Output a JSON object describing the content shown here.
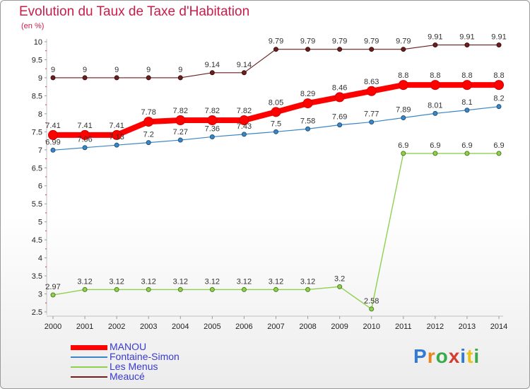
{
  "title": "Evolution du Taux de Taxe d'Habitation",
  "subtitle": "(en %)",
  "brand": {
    "letters": [
      "P",
      "r",
      "o",
      "x",
      "i",
      "t",
      "i"
    ],
    "colors": [
      "#2f7bd6",
      "#e8841b",
      "#3aa94a",
      "#d63b2f",
      "#2f7bd6",
      "#e8c21b",
      "#3aa94a"
    ]
  },
  "chart_data": {
    "type": "line",
    "x": [
      "2000",
      "2001",
      "2002",
      "2003",
      "2004",
      "2005",
      "2006",
      "2007",
      "2008",
      "2009",
      "2010",
      "2011",
      "2012",
      "2013",
      "2014"
    ],
    "ylim": [
      2.5,
      10
    ],
    "yticks": [
      "2.5",
      "3",
      "3.5",
      "4",
      "4.5",
      "5",
      "5.5",
      "6",
      "6.5",
      "7",
      "7.5",
      "8",
      "8.5",
      "9",
      "9.5",
      "10"
    ],
    "grid": false,
    "legend_position": "bottom-left",
    "series": [
      {
        "name": "MANOU",
        "color": "#ff0000",
        "values": [
          7.41,
          7.41,
          7.41,
          7.78,
          7.82,
          7.82,
          7.82,
          8.05,
          8.29,
          8.46,
          8.63,
          8.8,
          8.8,
          8.8,
          8.8
        ],
        "labels": [
          "7.41",
          "7.41",
          "7.41",
          "7.78",
          "7.82",
          "7.82",
          "7.82",
          "8.05",
          "8.29",
          "8.46",
          "8.63",
          "8.8",
          "8.8",
          "8.8",
          "8.8"
        ]
      },
      {
        "name": "Fontaine-Simon",
        "color": "#3b86c6",
        "values": [
          6.99,
          7.06,
          7.13,
          7.2,
          7.27,
          7.36,
          7.43,
          7.5,
          7.58,
          7.69,
          7.77,
          7.89,
          8.01,
          8.1,
          8.2
        ],
        "labels": [
          "6.99",
          "7.06",
          "7.13",
          "7.2",
          "7.27",
          "7.36",
          "7.43",
          "7.5",
          "7.58",
          "7.69",
          "7.77",
          "7.89",
          "8.01",
          "8.1",
          "8.2"
        ]
      },
      {
        "name": "Les Menus",
        "color": "#8fd14f",
        "values": [
          2.97,
          3.12,
          3.12,
          3.12,
          3.12,
          3.12,
          3.12,
          3.12,
          3.12,
          3.2,
          2.58,
          6.9,
          6.9,
          6.9,
          6.9
        ],
        "labels": [
          "2.97",
          "3.12",
          "3.12",
          "3.12",
          "3.12",
          "3.12",
          "3.12",
          "3.12",
          "3.12",
          "3.2",
          "2.58",
          "6.9",
          "6.9",
          "6.9",
          "6.9"
        ]
      },
      {
        "name": "Meaucé",
        "color": "#6b1f1f",
        "values": [
          9,
          9,
          9,
          9,
          9,
          9.14,
          9.14,
          9.79,
          9.79,
          9.79,
          9.79,
          9.79,
          9.91,
          9.91,
          9.91
        ],
        "labels": [
          "9",
          "9",
          "9",
          "9",
          "9",
          "9.14",
          "9.14",
          "9.79",
          "9.79",
          "9.79",
          "9.79",
          "9.79",
          "9.91",
          "9.91",
          "9.91"
        ]
      }
    ]
  }
}
